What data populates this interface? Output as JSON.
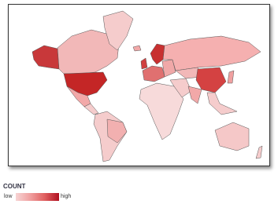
{
  "legend": {
    "title": "COUNT",
    "low": "low",
    "high": "high"
  }
}
